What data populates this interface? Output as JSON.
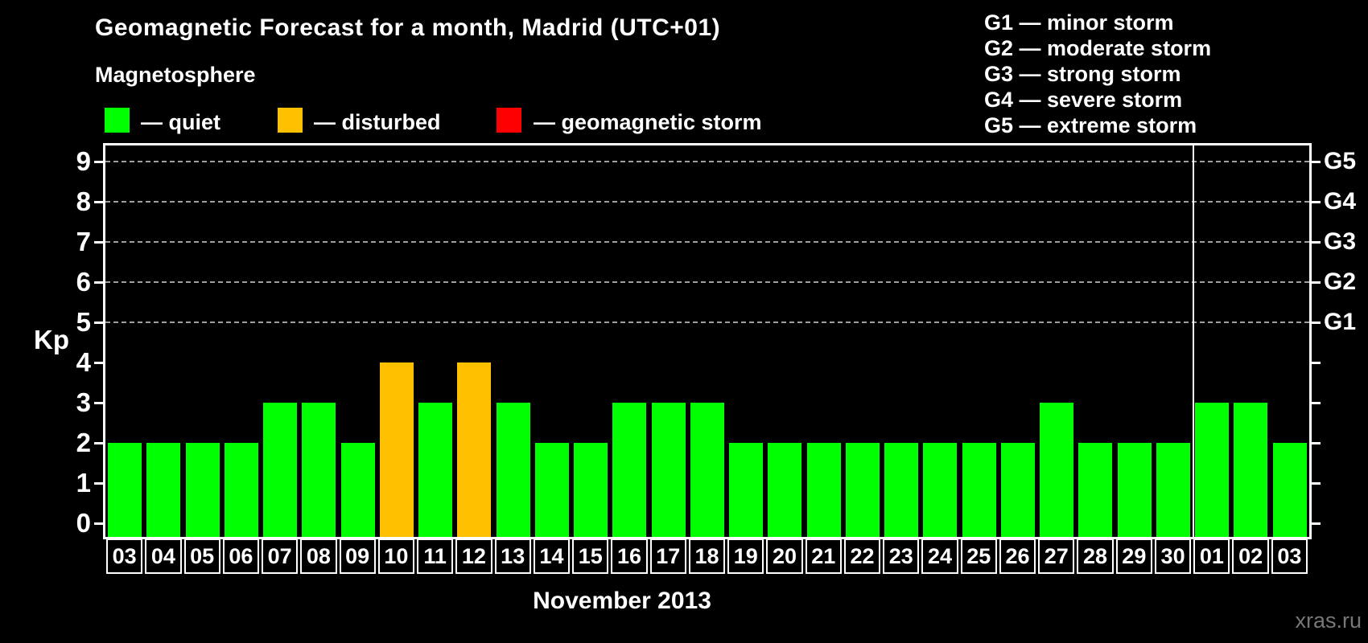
{
  "header": {
    "title": "Geomagnetic Forecast for a month, Madrid (UTC+01)",
    "subtitle": "Magnetosphere"
  },
  "legend": {
    "items": [
      {
        "name": "quiet",
        "label": "— quiet",
        "color": "#00ff00"
      },
      {
        "name": "disturbed",
        "label": "— disturbed",
        "color": "#ffc000"
      },
      {
        "name": "storm",
        "label": "— geomagnetic storm",
        "color": "#ff0000"
      }
    ]
  },
  "g_scale": {
    "items": [
      {
        "label": "G1 — minor storm"
      },
      {
        "label": "G2 — moderate storm"
      },
      {
        "label": "G3 — strong storm"
      },
      {
        "label": "G4 — severe storm"
      },
      {
        "label": "G5 — extreme storm"
      }
    ]
  },
  "footer": {
    "xlabel": "November 2013",
    "watermark": "xras.ru"
  },
  "chart_data": {
    "type": "bar",
    "title": "Geomagnetic Forecast for a month, Madrid (UTC+01)",
    "subtitle": "Magnetosphere",
    "xlabel": "November 2013",
    "ylabel": "Kp",
    "ylim": [
      0,
      9.4
    ],
    "grid": "horizontal dashed lines at Kp 5,6,7,8,9",
    "legend_position": "top-left",
    "categories": [
      "03",
      "04",
      "05",
      "06",
      "07",
      "08",
      "09",
      "10",
      "11",
      "12",
      "13",
      "14",
      "15",
      "16",
      "17",
      "18",
      "19",
      "20",
      "21",
      "22",
      "23",
      "24",
      "25",
      "26",
      "27",
      "28",
      "29",
      "30",
      "01",
      "02",
      "03"
    ],
    "values": [
      2,
      2,
      2,
      2,
      3,
      3,
      2,
      4,
      3,
      4,
      3,
      2,
      2,
      3,
      3,
      3,
      2,
      2,
      2,
      2,
      2,
      2,
      2,
      2,
      3,
      2,
      2,
      2,
      3,
      3,
      2
    ],
    "statuses": [
      "quiet",
      "quiet",
      "quiet",
      "quiet",
      "quiet",
      "quiet",
      "quiet",
      "disturbed",
      "quiet",
      "disturbed",
      "quiet",
      "quiet",
      "quiet",
      "quiet",
      "quiet",
      "quiet",
      "quiet",
      "quiet",
      "quiet",
      "quiet",
      "quiet",
      "quiet",
      "quiet",
      "quiet",
      "quiet",
      "quiet",
      "quiet",
      "quiet",
      "quiet",
      "quiet",
      "quiet"
    ],
    "left_axis_ticks": [
      9,
      8,
      7,
      6,
      5,
      4,
      3,
      2,
      1,
      0
    ],
    "right_axis_labels": [
      {
        "label": "G5",
        "kp": 9
      },
      {
        "label": "G4",
        "kp": 8
      },
      {
        "label": "G3",
        "kp": 7
      },
      {
        "label": "G2",
        "kp": 6
      },
      {
        "label": "G1",
        "kp": 5
      }
    ],
    "month_separator_after_category_index": 27,
    "colors": {
      "quiet": "#00ff00",
      "disturbed": "#ffc000",
      "storm": "#ff0000",
      "axis": "#ffffff",
      "grid": "#a0a0a0",
      "background": "#000000",
      "watermark": "#777777"
    }
  }
}
